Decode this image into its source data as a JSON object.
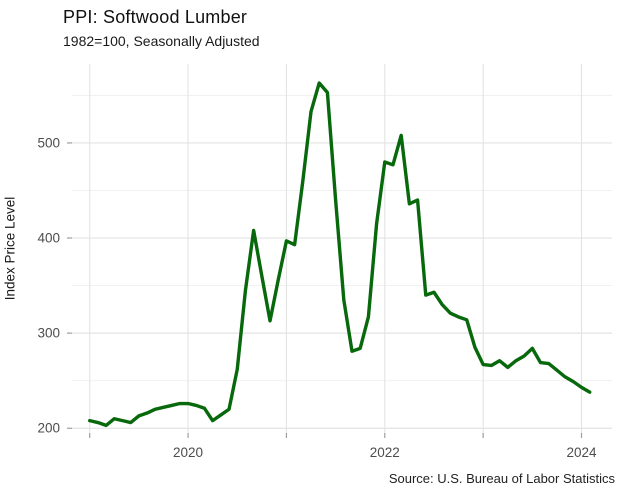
{
  "chart_data": {
    "type": "line",
    "title": "PPI: Softwood Lumber",
    "subtitle": "1982=100, Seasonally Adjusted",
    "ylabel": "Index Price Level",
    "xlabel": "",
    "caption": "Source: U.S. Bureau of Labor Statistics",
    "legend": "none",
    "grid": true,
    "x_domain": [
      2018.82,
      2024.31
    ],
    "y_domain": [
      195,
      583
    ],
    "y_ticks": [
      200,
      300,
      400,
      500
    ],
    "y_minor_gridlines": [
      250,
      350,
      450,
      550
    ],
    "x_gridline_years": [
      2019,
      2020,
      2021,
      2022,
      2023,
      2024
    ],
    "x_axis_tick_years": [
      2019,
      2020,
      2021,
      2022,
      2023,
      2024
    ],
    "x_labeled_ticks": [
      {
        "year": 2020,
        "label": "2020"
      },
      {
        "year": 2022,
        "label": "2022"
      },
      {
        "year": 2024,
        "label": "2024"
      }
    ],
    "colors": {
      "line": "#07680c",
      "grid_major": "#e3e3e3",
      "grid_minor": "#efefef",
      "tick": "#9e9e9e",
      "tick_label": "#4d4d4d"
    },
    "series": [
      {
        "name": "PPI: Softwood Lumber",
        "frequency": "monthly",
        "start_year": 2019,
        "start_month": 1,
        "end_year": 2024,
        "end_month": 2,
        "values": [
          208,
          206,
          203,
          210,
          208,
          206,
          213,
          216,
          220,
          222,
          224,
          226,
          226,
          224,
          221,
          208,
          214,
          220,
          262,
          345,
          408,
          360,
          313,
          356,
          397,
          393,
          460,
          533,
          563,
          553,
          440,
          335,
          281,
          284,
          317,
          415,
          480,
          477,
          508,
          436,
          440,
          340,
          343,
          330,
          321,
          317,
          314,
          285,
          267,
          266,
          271,
          264,
          271,
          276,
          284,
          269,
          268,
          261,
          254,
          249,
          243,
          238
        ]
      }
    ]
  }
}
